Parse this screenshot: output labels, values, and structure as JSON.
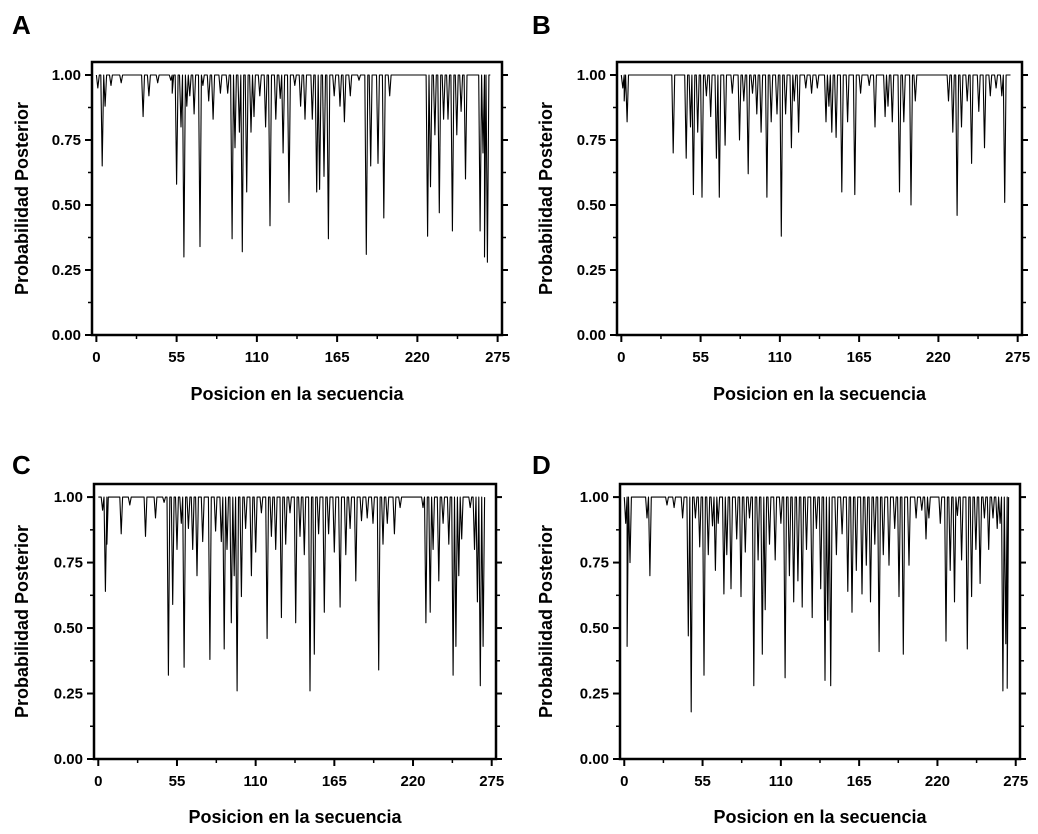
{
  "chart_data": [
    {
      "panel": "A",
      "type": "line",
      "xlabel": "Posicion en la secuencia",
      "ylabel": "Probabilidad Posterior",
      "xticks": [
        0,
        55,
        110,
        165,
        220,
        275
      ],
      "yticks": [
        "0.00",
        "0.25",
        "0.50",
        "0.75",
        "1.00"
      ],
      "xlim": [
        -3,
        278
      ],
      "ylim": [
        0,
        1.05
      ],
      "grid": false,
      "dips": [
        [
          1,
          0.95
        ],
        [
          4,
          0.65
        ],
        [
          6,
          0.88
        ],
        [
          10,
          0.96
        ],
        [
          17,
          0.97
        ],
        [
          32,
          0.84
        ],
        [
          36,
          0.92
        ],
        [
          42,
          0.97
        ],
        [
          51,
          0.98
        ],
        [
          52,
          0.93
        ],
        [
          55,
          0.58
        ],
        [
          58,
          0.8
        ],
        [
          60,
          0.3
        ],
        [
          62,
          0.88
        ],
        [
          64,
          0.92
        ],
        [
          67,
          0.85
        ],
        [
          71,
          0.34
        ],
        [
          73,
          0.96
        ],
        [
          77,
          0.9
        ],
        [
          80,
          0.83
        ],
        [
          85,
          0.93
        ],
        [
          90,
          0.93
        ],
        [
          93,
          0.37
        ],
        [
          95,
          0.72
        ],
        [
          98,
          0.78
        ],
        [
          100,
          0.32
        ],
        [
          103,
          0.55
        ],
        [
          106,
          0.78
        ],
        [
          108,
          0.84
        ],
        [
          112,
          0.92
        ],
        [
          116,
          0.8
        ],
        [
          119,
          0.42
        ],
        [
          123,
          0.83
        ],
        [
          126,
          0.91
        ],
        [
          128,
          0.7
        ],
        [
          132,
          0.51
        ],
        [
          136,
          0.96
        ],
        [
          140,
          0.88
        ],
        [
          143,
          0.83
        ],
        [
          148,
          0.83
        ],
        [
          151,
          0.55
        ],
        [
          153,
          0.56
        ],
        [
          156,
          0.61
        ],
        [
          159,
          0.37
        ],
        [
          163,
          0.92
        ],
        [
          167,
          0.88
        ],
        [
          170,
          0.82
        ],
        [
          174,
          0.92
        ],
        [
          180,
          0.98
        ],
        [
          185,
          0.31
        ],
        [
          188,
          0.65
        ],
        [
          193,
          0.66
        ],
        [
          197,
          0.45
        ],
        [
          201,
          0.92
        ],
        [
          227,
          0.38
        ],
        [
          229,
          0.57
        ],
        [
          232,
          0.77
        ],
        [
          235,
          0.47
        ],
        [
          238,
          0.83
        ],
        [
          241,
          0.83
        ],
        [
          244,
          0.4
        ],
        [
          247,
          0.77
        ],
        [
          250,
          0.86
        ],
        [
          253,
          0.6
        ],
        [
          263,
          0.4
        ],
        [
          265,
          0.7
        ],
        [
          266,
          0.3
        ],
        [
          268,
          0.28
        ]
      ]
    },
    {
      "panel": "B",
      "type": "line",
      "xlabel": "Posicion en la secuencia",
      "ylabel": "Probabilidad Posterior",
      "xticks": [
        0,
        55,
        110,
        165,
        220,
        275
      ],
      "yticks": [
        "0.00",
        "0.25",
        "0.50",
        "0.75",
        "1.00"
      ],
      "xlim": [
        -3,
        278
      ],
      "ylim": [
        0,
        1.05
      ],
      "grid": false,
      "dips": [
        [
          1,
          0.95
        ],
        [
          2,
          0.9
        ],
        [
          4,
          0.82
        ],
        [
          36,
          0.7
        ],
        [
          45,
          0.68
        ],
        [
          48,
          0.8
        ],
        [
          50,
          0.54
        ],
        [
          53,
          0.78
        ],
        [
          56,
          0.53
        ],
        [
          59,
          0.92
        ],
        [
          62,
          0.84
        ],
        [
          66,
          0.68
        ],
        [
          68,
          0.53
        ],
        [
          72,
          0.73
        ],
        [
          77,
          0.93
        ],
        [
          82,
          0.75
        ],
        [
          85,
          0.9
        ],
        [
          88,
          0.62
        ],
        [
          91,
          0.93
        ],
        [
          94,
          0.85
        ],
        [
          97,
          0.78
        ],
        [
          101,
          0.53
        ],
        [
          104,
          0.82
        ],
        [
          108,
          0.85
        ],
        [
          111,
          0.38
        ],
        [
          114,
          0.85
        ],
        [
          118,
          0.72
        ],
        [
          120,
          0.9
        ],
        [
          123,
          0.78
        ],
        [
          128,
          0.95
        ],
        [
          132,
          0.93
        ],
        [
          136,
          0.95
        ],
        [
          142,
          0.82
        ],
        [
          144,
          0.88
        ],
        [
          146,
          0.78
        ],
        [
          149,
          0.76
        ],
        [
          153,
          0.55
        ],
        [
          157,
          0.82
        ],
        [
          162,
          0.54
        ],
        [
          166,
          0.93
        ],
        [
          172,
          0.96
        ],
        [
          176,
          0.8
        ],
        [
          183,
          0.84
        ],
        [
          185,
          0.88
        ],
        [
          188,
          0.82
        ],
        [
          193,
          0.55
        ],
        [
          196,
          0.82
        ],
        [
          201,
          0.5
        ],
        [
          204,
          0.9
        ],
        [
          227,
          0.9
        ],
        [
          230,
          0.78
        ],
        [
          233,
          0.46
        ],
        [
          236,
          0.8
        ],
        [
          240,
          0.9
        ],
        [
          243,
          0.66
        ],
        [
          248,
          0.86
        ],
        [
          252,
          0.72
        ],
        [
          256,
          0.92
        ],
        [
          260,
          0.95
        ],
        [
          264,
          0.92
        ],
        [
          266,
          0.51
        ]
      ]
    },
    {
      "panel": "C",
      "type": "line",
      "xlabel": "Posicion en la secuencia",
      "ylabel": "Probabilidad Posterior",
      "xticks": [
        0,
        55,
        110,
        165,
        220,
        275
      ],
      "yticks": [
        "0.00",
        "0.25",
        "0.50",
        "0.75",
        "1.00"
      ],
      "xlim": [
        -3,
        278
      ],
      "ylim": [
        0,
        1.05
      ],
      "grid": false,
      "dips": [
        [
          3,
          0.95
        ],
        [
          5,
          0.64
        ],
        [
          6,
          0.82
        ],
        [
          16,
          0.86
        ],
        [
          22,
          0.97
        ],
        [
          33,
          0.85
        ],
        [
          40,
          0.92
        ],
        [
          46,
          0.98
        ],
        [
          49,
          0.32
        ],
        [
          52,
          0.59
        ],
        [
          55,
          0.8
        ],
        [
          58,
          0.9
        ],
        [
          60,
          0.35
        ],
        [
          63,
          0.88
        ],
        [
          66,
          0.8
        ],
        [
          69,
          0.7
        ],
        [
          73,
          0.83
        ],
        [
          78,
          0.38
        ],
        [
          82,
          0.87
        ],
        [
          86,
          0.83
        ],
        [
          88,
          0.42
        ],
        [
          90,
          0.8
        ],
        [
          93,
          0.52
        ],
        [
          95,
          0.7
        ],
        [
          97,
          0.26
        ],
        [
          100,
          0.62
        ],
        [
          103,
          0.88
        ],
        [
          107,
          0.7
        ],
        [
          110,
          0.79
        ],
        [
          114,
          0.94
        ],
        [
          118,
          0.46
        ],
        [
          121,
          0.85
        ],
        [
          124,
          0.8
        ],
        [
          128,
          0.54
        ],
        [
          131,
          0.82
        ],
        [
          134,
          0.94
        ],
        [
          138,
          0.52
        ],
        [
          141,
          0.85
        ],
        [
          144,
          0.78
        ],
        [
          148,
          0.26
        ],
        [
          151,
          0.4
        ],
        [
          154,
          0.86
        ],
        [
          158,
          0.56
        ],
        [
          161,
          0.86
        ],
        [
          165,
          0.79
        ],
        [
          169,
          0.58
        ],
        [
          173,
          0.78
        ],
        [
          176,
          0.88
        ],
        [
          180,
          0.68
        ],
        [
          184,
          0.91
        ],
        [
          188,
          0.92
        ],
        [
          192,
          0.9
        ],
        [
          196,
          0.34
        ],
        [
          199,
          0.82
        ],
        [
          202,
          0.9
        ],
        [
          207,
          0.86
        ],
        [
          211,
          0.96
        ],
        [
          227,
          0.96
        ],
        [
          229,
          0.52
        ],
        [
          232,
          0.56
        ],
        [
          234,
          0.8
        ],
        [
          238,
          0.68
        ],
        [
          241,
          0.9
        ],
        [
          245,
          0.82
        ],
        [
          248,
          0.32
        ],
        [
          250,
          0.43
        ],
        [
          252,
          0.7
        ],
        [
          254,
          0.84
        ],
        [
          260,
          0.96
        ],
        [
          263,
          0.8
        ],
        [
          265,
          0.6
        ],
        [
          267,
          0.28
        ],
        [
          269,
          0.43
        ]
      ]
    },
    {
      "panel": "D",
      "type": "line",
      "xlabel": "Posicion en la secuencia",
      "ylabel": "Probabilidad Posterior",
      "xticks": [
        0,
        55,
        110,
        165,
        220,
        275
      ],
      "yticks": [
        "0.00",
        "0.25",
        "0.50",
        "0.75",
        "1.00"
      ],
      "xlim": [
        -3,
        278
      ],
      "ylim": [
        0,
        1.05
      ],
      "grid": false,
      "dips": [
        [
          1,
          0.9
        ],
        [
          2,
          0.43
        ],
        [
          4,
          0.75
        ],
        [
          16,
          0.92
        ],
        [
          18,
          0.7
        ],
        [
          30,
          0.97
        ],
        [
          35,
          0.96
        ],
        [
          41,
          0.92
        ],
        [
          45,
          0.47
        ],
        [
          47,
          0.18
        ],
        [
          50,
          0.92
        ],
        [
          53,
          0.81
        ],
        [
          56,
          0.32
        ],
        [
          59,
          0.78
        ],
        [
          62,
          0.89
        ],
        [
          64,
          0.72
        ],
        [
          66,
          0.9
        ],
        [
          70,
          0.63
        ],
        [
          72,
          0.78
        ],
        [
          75,
          0.65
        ],
        [
          79,
          0.84
        ],
        [
          82,
          0.62
        ],
        [
          85,
          0.79
        ],
        [
          88,
          0.92
        ],
        [
          91,
          0.28
        ],
        [
          94,
          0.76
        ],
        [
          97,
          0.4
        ],
        [
          99,
          0.57
        ],
        [
          102,
          0.82
        ],
        [
          106,
          0.76
        ],
        [
          110,
          0.9
        ],
        [
          113,
          0.31
        ],
        [
          116,
          0.7
        ],
        [
          119,
          0.6
        ],
        [
          122,
          0.68
        ],
        [
          125,
          0.58
        ],
        [
          128,
          0.8
        ],
        [
          132,
          0.54
        ],
        [
          135,
          0.88
        ],
        [
          138,
          0.65
        ],
        [
          141,
          0.3
        ],
        [
          143,
          0.53
        ],
        [
          145,
          0.28
        ],
        [
          149,
          0.78
        ],
        [
          153,
          0.86
        ],
        [
          157,
          0.64
        ],
        [
          160,
          0.56
        ],
        [
          163,
          0.72
        ],
        [
          167,
          0.63
        ],
        [
          170,
          0.74
        ],
        [
          173,
          0.6
        ],
        [
          176,
          0.82
        ],
        [
          179,
          0.41
        ],
        [
          182,
          0.78
        ],
        [
          186,
          0.74
        ],
        [
          190,
          0.88
        ],
        [
          193,
          0.62
        ],
        [
          196,
          0.4
        ],
        [
          200,
          0.74
        ],
        [
          205,
          0.92
        ],
        [
          209,
          0.95
        ],
        [
          212,
          0.84
        ],
        [
          214,
          0.92
        ],
        [
          222,
          0.9
        ],
        [
          226,
          0.45
        ],
        [
          229,
          0.72
        ],
        [
          232,
          0.6
        ],
        [
          234,
          0.93
        ],
        [
          237,
          0.76
        ],
        [
          241,
          0.42
        ],
        [
          244,
          0.62
        ],
        [
          247,
          0.8
        ],
        [
          250,
          0.67
        ],
        [
          253,
          0.92
        ],
        [
          256,
          0.8
        ],
        [
          259,
          0.92
        ],
        [
          262,
          0.88
        ],
        [
          264,
          0.9
        ],
        [
          266,
          0.26
        ],
        [
          268,
          0.44
        ],
        [
          269,
          0.27
        ]
      ]
    }
  ]
}
